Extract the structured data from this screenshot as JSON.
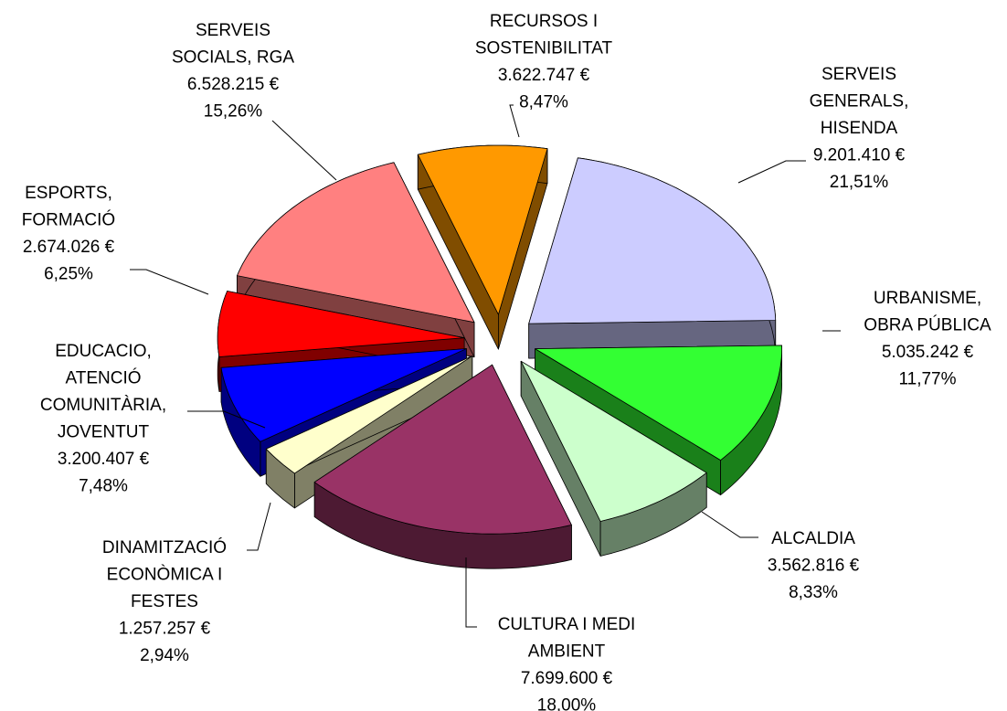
{
  "chart_data": {
    "type": "pie",
    "categories": [
      [
        "SERVEIS",
        "GENERALS,",
        "HISENDA"
      ],
      [
        "URBANISME,",
        "OBRA PÚBLICA"
      ],
      [
        "ALCALDIA"
      ],
      [
        "CULTURA I MEDI",
        "AMBIENT"
      ],
      [
        "DINAMITZACIÓ",
        "ECONÒMICA I",
        "FESTES"
      ],
      [
        "EDUCACIO,",
        "ATENCIÓ",
        "COMUNITÀRIA,",
        "JOVENTUT"
      ],
      [
        "ESPORTS,",
        "FORMACIÓ"
      ],
      [
        "SERVEIS",
        "SOCIALS, RGA"
      ],
      [
        "RECURSOS I",
        "SOSTENIBILITAT"
      ]
    ],
    "values": [
      21.51,
      11.77,
      8.33,
      18.0,
      2.94,
      7.48,
      6.25,
      15.26,
      8.47
    ],
    "value_labels": [
      "21,51%",
      "11,77%",
      "8,33%",
      "18,00%",
      "2,94%",
      "7,48%",
      "6,25%",
      "15,26%",
      "8,47%"
    ],
    "amounts": [
      9201410,
      5035242,
      3562816,
      7699600,
      1257257,
      3200407,
      2674026,
      6528215,
      3622747
    ],
    "amount_labels": [
      "9.201.410 €",
      "5.035.242 €",
      "3.562.816 €",
      "7.699.600 €",
      "1.257.257 €",
      "3.200.407 €",
      "2.674.026 €",
      "6.528.215 €",
      "3.622.747 €"
    ],
    "colors": [
      "#ccccff",
      "#33ff33",
      "#ccffcc",
      "#993366",
      "#ffffcc",
      "#0000ff",
      "#ff0000",
      "#ff8080",
      "#ff9900"
    ]
  }
}
